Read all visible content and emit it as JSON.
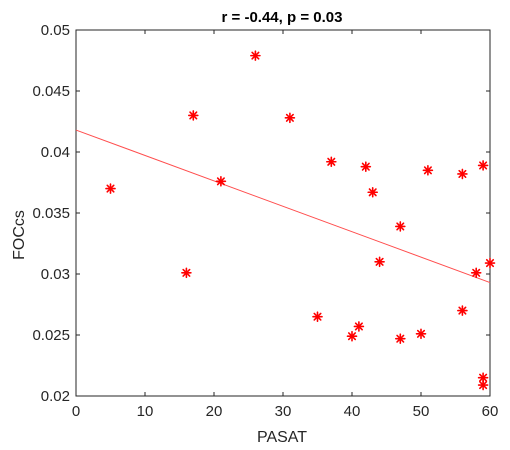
{
  "chart_data": {
    "type": "scatter",
    "title": "r = -0.44, p = 0.03",
    "xlabel": "PASAT",
    "ylabel": "FOCcs",
    "xlim": [
      0,
      60
    ],
    "ylim": [
      0.02,
      0.05
    ],
    "x_ticks": [
      0,
      10,
      20,
      30,
      40,
      50,
      60
    ],
    "x_tick_labels": [
      "0",
      "10",
      "20",
      "30",
      "40",
      "50",
      "60"
    ],
    "y_ticks": [
      0.02,
      0.025,
      0.03,
      0.035,
      0.04,
      0.045,
      0.05
    ],
    "y_tick_labels": [
      "0.02",
      "0.025",
      "0.03",
      "0.035",
      "0.04",
      "0.045",
      "0.05"
    ],
    "grid": false,
    "marker": "asterisk",
    "marker_color": "#ff0000",
    "fit_line_color": "#ff4d4d",
    "points": [
      {
        "x": 5,
        "y": 0.037
      },
      {
        "x": 16,
        "y": 0.0301
      },
      {
        "x": 17,
        "y": 0.043
      },
      {
        "x": 21,
        "y": 0.0376
      },
      {
        "x": 26,
        "y": 0.0479
      },
      {
        "x": 31,
        "y": 0.0428
      },
      {
        "x": 35,
        "y": 0.0265
      },
      {
        "x": 37,
        "y": 0.0392
      },
      {
        "x": 40,
        "y": 0.0249
      },
      {
        "x": 41,
        "y": 0.0257
      },
      {
        "x": 42,
        "y": 0.0388
      },
      {
        "x": 43,
        "y": 0.0367
      },
      {
        "x": 44,
        "y": 0.031
      },
      {
        "x": 47,
        "y": 0.0339
      },
      {
        "x": 47,
        "y": 0.0247
      },
      {
        "x": 50,
        "y": 0.0251
      },
      {
        "x": 51,
        "y": 0.0385
      },
      {
        "x": 56,
        "y": 0.0382
      },
      {
        "x": 56,
        "y": 0.027
      },
      {
        "x": 58,
        "y": 0.0301
      },
      {
        "x": 59,
        "y": 0.0389
      },
      {
        "x": 59,
        "y": 0.0215
      },
      {
        "x": 59,
        "y": 0.0209
      },
      {
        "x": 60,
        "y": 0.0309
      }
    ],
    "fit_line": {
      "x": [
        0,
        60
      ],
      "y": [
        0.0418,
        0.0293
      ]
    }
  }
}
